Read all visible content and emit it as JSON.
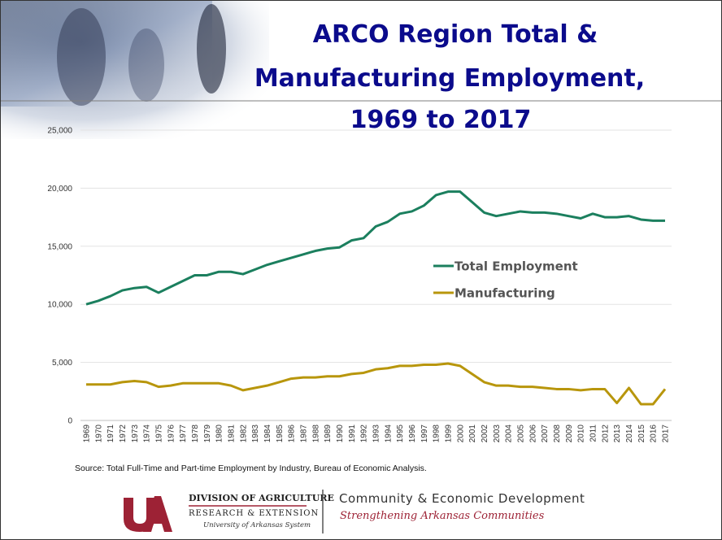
{
  "chart_data": {
    "type": "line",
    "title": [
      "ARCO Region Total &",
      "Manufacturing Employment,",
      "1969 to 2017"
    ],
    "categories": [
      "1969",
      "1970",
      "1971",
      "1972",
      "1973",
      "1974",
      "1975",
      "1976",
      "1977",
      "1978",
      "1979",
      "1980",
      "1981",
      "1982",
      "1983",
      "1984",
      "1985",
      "1986",
      "1987",
      "1988",
      "1989",
      "1990",
      "1991",
      "1992",
      "1993",
      "1994",
      "1995",
      "1996",
      "1997",
      "1998",
      "1999",
      "2000",
      "2001",
      "2002",
      "2003",
      "2004",
      "2005",
      "2006",
      "2007",
      "2008",
      "2009",
      "2010",
      "2011",
      "2012",
      "2013",
      "2014",
      "2015",
      "2016",
      "2017"
    ],
    "series": [
      {
        "name": "Total Employment",
        "color": "#1b7f5e",
        "values": [
          10000,
          10300,
          10700,
          11200,
          11400,
          11500,
          11000,
          11500,
          12000,
          12500,
          12500,
          12800,
          12800,
          12600,
          13000,
          13400,
          13700,
          14000,
          14300,
          14600,
          14800,
          14900,
          15500,
          15700,
          16700,
          17100,
          17800,
          18000,
          18500,
          19400,
          19700,
          19700,
          18800,
          17900,
          17600,
          17800,
          18000,
          17900,
          17900,
          17800,
          17600,
          17400,
          17800,
          17500,
          17500,
          17600,
          17300,
          17200,
          17200
        ]
      },
      {
        "name": "Manufacturing",
        "color": "#b8960c",
        "values": [
          3100,
          3100,
          3100,
          3300,
          3400,
          3300,
          2900,
          3000,
          3200,
          3200,
          3200,
          3200,
          3000,
          2600,
          2800,
          3000,
          3300,
          3600,
          3700,
          3700,
          3800,
          3800,
          4000,
          4100,
          4400,
          4500,
          4700,
          4700,
          4800,
          4800,
          4900,
          4700,
          4000,
          3300,
          3000,
          3000,
          2900,
          2900,
          2800,
          2700,
          2700,
          2600,
          2700,
          2700,
          1500,
          2800,
          1400,
          1400,
          2700
        ]
      }
    ],
    "ylim": [
      0,
      25000
    ],
    "yticks": [
      0,
      {
        "value": 5000,
        "label": "5,000"
      },
      {
        "value": 10000,
        "label": "10,000"
      },
      {
        "value": 15000,
        "label": "15,000"
      },
      {
        "value": 20000,
        "label": "20,000"
      },
      {
        "value": 25000,
        "label": "25,000"
      }
    ],
    "grid": true,
    "legend": "center-right",
    "source": "Source: Total Full-Time and Part-time Employment by Industry, Bureau of Economic Analysis."
  },
  "footer": {
    "division": "DIVISION OF AGRICULTURE",
    "research": "RESEARCH & EXTENSION",
    "system": "University of Arkansas System",
    "program": "Community & Economic Development",
    "tagline": "Strengthening Arkansas Communities"
  }
}
